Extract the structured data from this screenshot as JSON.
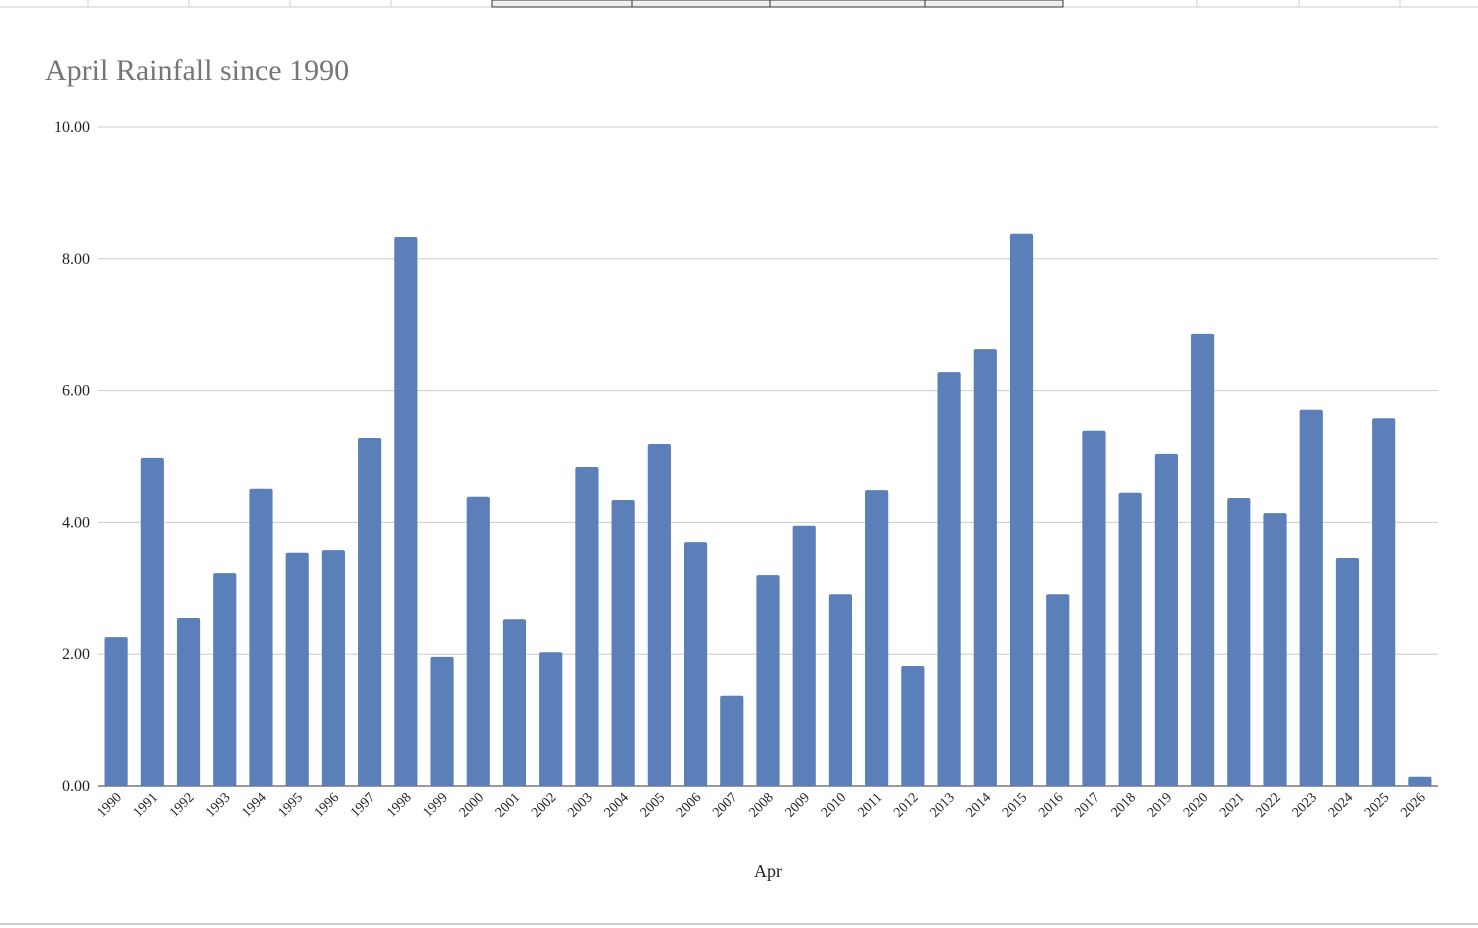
{
  "chart_data": {
    "type": "bar",
    "title": "April Rainfall since 1990",
    "x_label": "Apr",
    "categories": [
      "1990",
      "1991",
      "1992",
      "1993",
      "1994",
      "1995",
      "1996",
      "1997",
      "1998",
      "1999",
      "2000",
      "2001",
      "2002",
      "2003",
      "2004",
      "2005",
      "2006",
      "2007",
      "2008",
      "2009",
      "2010",
      "2011",
      "2012",
      "2013",
      "2014",
      "2015",
      "2016",
      "2017",
      "2018",
      "2019",
      "2020",
      "2021",
      "2022",
      "2023",
      "2024",
      "2025",
      "2026"
    ],
    "values": [
      2.26,
      4.98,
      2.55,
      3.23,
      4.51,
      3.54,
      3.58,
      5.28,
      8.33,
      1.96,
      4.39,
      2.53,
      2.03,
      4.84,
      4.34,
      5.19,
      3.7,
      1.37,
      3.2,
      3.95,
      2.91,
      4.49,
      1.82,
      6.28,
      6.63,
      8.38,
      2.91,
      5.39,
      4.45,
      5.04,
      6.86,
      4.37,
      4.14,
      5.71,
      3.46,
      5.58,
      0.14
    ],
    "color": "#5b7fb8",
    "ylim": [
      0,
      10
    ],
    "yticks": [
      {
        "value": 0,
        "label": "0.00"
      },
      {
        "value": 2,
        "label": "2.00"
      },
      {
        "value": 4,
        "label": "4.00"
      },
      {
        "value": 6,
        "label": "6.00"
      },
      {
        "value": 8,
        "label": "8.00"
      },
      {
        "value": 10,
        "label": "10.00"
      }
    ],
    "grid": true
  }
}
